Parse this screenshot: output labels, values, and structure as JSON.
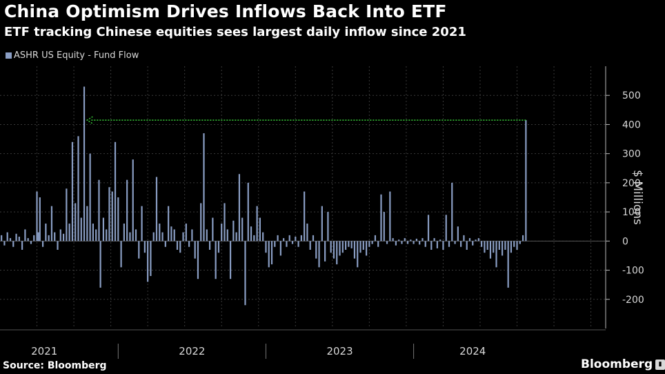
{
  "header": {
    "title": "China Optimism Drives Inflows Back Into ETF",
    "subtitle": "ETF tracking Chinese equities sees largest daily inflow since 2021"
  },
  "legend": {
    "label": "ASHR US Equity - Fund Flow"
  },
  "footer": {
    "source": "Source: Bloomberg",
    "brand": "Bloomberg"
  },
  "colors": {
    "bars": "#8a9ec4",
    "annotation": "#39d339",
    "grid": "#3a3a3a",
    "background": "#000000"
  },
  "chart_data": {
    "type": "bar",
    "title": "China Optimism Drives Inflows Back Into ETF",
    "subtitle": "ETF tracking Chinese equities sees largest daily inflow since 2021",
    "ylabel": "$ Millions",
    "y_axis_side": "right",
    "ylim": [
      -300,
      600
    ],
    "yticks": [
      -200,
      -100,
      0,
      100,
      200,
      300,
      400,
      500
    ],
    "xlim": [
      2020.75,
      2024.85
    ],
    "x_tick_labels": [
      "2021",
      "2022",
      "2023",
      "2024"
    ],
    "x_tick_label_positions": [
      2021.05,
      2022.05,
      2023.05,
      2023.95
    ],
    "x_dividers": [
      2021.55,
      2022.55,
      2023.55
    ],
    "grid": true,
    "legend_placement": "top-left",
    "series": [
      {
        "name": "ASHR US Equity - Fund Flow",
        "points": [
          [
            2020.76,
            20
          ],
          [
            2020.78,
            -15
          ],
          [
            2020.8,
            30
          ],
          [
            2020.82,
            10
          ],
          [
            2020.84,
            -20
          ],
          [
            2020.86,
            25
          ],
          [
            2020.88,
            15
          ],
          [
            2020.9,
            -30
          ],
          [
            2020.92,
            40
          ],
          [
            2020.94,
            10
          ],
          [
            2020.96,
            -10
          ],
          [
            2020.98,
            20
          ],
          [
            2021.0,
            170
          ],
          [
            2021.01,
            30
          ],
          [
            2021.02,
            150
          ],
          [
            2021.04,
            -20
          ],
          [
            2021.06,
            60
          ],
          [
            2021.08,
            20
          ],
          [
            2021.1,
            120
          ],
          [
            2021.12,
            30
          ],
          [
            2021.14,
            -30
          ],
          [
            2021.16,
            40
          ],
          [
            2021.18,
            25
          ],
          [
            2021.2,
            180
          ],
          [
            2021.22,
            60
          ],
          [
            2021.24,
            340
          ],
          [
            2021.26,
            130
          ],
          [
            2021.28,
            360
          ],
          [
            2021.3,
            80
          ],
          [
            2021.32,
            530
          ],
          [
            2021.34,
            120
          ],
          [
            2021.36,
            300
          ],
          [
            2021.38,
            60
          ],
          [
            2021.4,
            40
          ],
          [
            2021.42,
            210
          ],
          [
            2021.43,
            -160
          ],
          [
            2021.45,
            80
          ],
          [
            2021.47,
            40
          ],
          [
            2021.49,
            185
          ],
          [
            2021.51,
            170
          ],
          [
            2021.53,
            340
          ],
          [
            2021.55,
            150
          ],
          [
            2021.57,
            -90
          ],
          [
            2021.59,
            60
          ],
          [
            2021.61,
            210
          ],
          [
            2021.63,
            30
          ],
          [
            2021.65,
            280
          ],
          [
            2021.67,
            40
          ],
          [
            2021.69,
            -60
          ],
          [
            2021.71,
            120
          ],
          [
            2021.73,
            -40
          ],
          [
            2021.75,
            -140
          ],
          [
            2021.77,
            -120
          ],
          [
            2021.79,
            30
          ],
          [
            2021.81,
            220
          ],
          [
            2021.83,
            60
          ],
          [
            2021.85,
            30
          ],
          [
            2021.87,
            -20
          ],
          [
            2021.89,
            120
          ],
          [
            2021.91,
            50
          ],
          [
            2021.93,
            40
          ],
          [
            2021.95,
            -30
          ],
          [
            2021.97,
            -40
          ],
          [
            2021.99,
            30
          ],
          [
            2022.01,
            60
          ],
          [
            2022.03,
            -20
          ],
          [
            2022.05,
            40
          ],
          [
            2022.07,
            -60
          ],
          [
            2022.09,
            -130
          ],
          [
            2022.11,
            130
          ],
          [
            2022.13,
            370
          ],
          [
            2022.15,
            40
          ],
          [
            2022.17,
            -30
          ],
          [
            2022.19,
            80
          ],
          [
            2022.21,
            -130
          ],
          [
            2022.23,
            -40
          ],
          [
            2022.25,
            60
          ],
          [
            2022.27,
            130
          ],
          [
            2022.29,
            40
          ],
          [
            2022.31,
            -130
          ],
          [
            2022.33,
            70
          ],
          [
            2022.35,
            30
          ],
          [
            2022.37,
            230
          ],
          [
            2022.39,
            80
          ],
          [
            2022.41,
            -220
          ],
          [
            2022.43,
            200
          ],
          [
            2022.45,
            50
          ],
          [
            2022.47,
            20
          ],
          [
            2022.49,
            120
          ],
          [
            2022.51,
            80
          ],
          [
            2022.53,
            30
          ],
          [
            2022.55,
            -40
          ],
          [
            2022.57,
            -90
          ],
          [
            2022.59,
            -80
          ],
          [
            2022.61,
            -20
          ],
          [
            2022.63,
            20
          ],
          [
            2022.65,
            -50
          ],
          [
            2022.67,
            10
          ],
          [
            2022.69,
            -20
          ],
          [
            2022.71,
            20
          ],
          [
            2022.73,
            -10
          ],
          [
            2022.75,
            15
          ],
          [
            2022.77,
            -20
          ],
          [
            2022.79,
            20
          ],
          [
            2022.81,
            170
          ],
          [
            2022.83,
            60
          ],
          [
            2022.85,
            -30
          ],
          [
            2022.87,
            20
          ],
          [
            2022.89,
            -60
          ],
          [
            2022.91,
            -90
          ],
          [
            2022.93,
            120
          ],
          [
            2022.95,
            -70
          ],
          [
            2022.97,
            100
          ],
          [
            2022.99,
            -40
          ],
          [
            2023.01,
            -60
          ],
          [
            2023.03,
            -80
          ],
          [
            2023.05,
            -50
          ],
          [
            2023.07,
            -40
          ],
          [
            2023.09,
            -30
          ],
          [
            2023.11,
            -20
          ],
          [
            2023.13,
            -25
          ],
          [
            2023.15,
            -60
          ],
          [
            2023.17,
            -90
          ],
          [
            2023.19,
            -40
          ],
          [
            2023.21,
            -30
          ],
          [
            2023.23,
            -50
          ],
          [
            2023.25,
            -20
          ],
          [
            2023.27,
            -10
          ],
          [
            2023.29,
            20
          ],
          [
            2023.31,
            -20
          ],
          [
            2023.33,
            160
          ],
          [
            2023.35,
            100
          ],
          [
            2023.37,
            -10
          ],
          [
            2023.39,
            170
          ],
          [
            2023.41,
            10
          ],
          [
            2023.43,
            -15
          ],
          [
            2023.45,
            5
          ],
          [
            2023.47,
            -10
          ],
          [
            2023.49,
            10
          ],
          [
            2023.51,
            -10
          ],
          [
            2023.53,
            5
          ],
          [
            2023.55,
            -10
          ],
          [
            2023.57,
            8
          ],
          [
            2023.59,
            -12
          ],
          [
            2023.61,
            10
          ],
          [
            2023.63,
            -20
          ],
          [
            2023.65,
            90
          ],
          [
            2023.67,
            -30
          ],
          [
            2023.69,
            10
          ],
          [
            2023.71,
            -25
          ],
          [
            2023.73,
            5
          ],
          [
            2023.75,
            -30
          ],
          [
            2023.77,
            90
          ],
          [
            2023.79,
            -20
          ],
          [
            2023.81,
            200
          ],
          [
            2023.83,
            -10
          ],
          [
            2023.85,
            50
          ],
          [
            2023.87,
            -20
          ],
          [
            2023.89,
            20
          ],
          [
            2023.91,
            -30
          ],
          [
            2023.93,
            10
          ],
          [
            2023.95,
            -15
          ],
          [
            2023.97,
            5
          ],
          [
            2023.99,
            10
          ],
          [
            2024.01,
            -20
          ],
          [
            2024.03,
            -40
          ],
          [
            2024.05,
            -30
          ],
          [
            2024.07,
            -60
          ],
          [
            2024.09,
            -40
          ],
          [
            2024.11,
            -90
          ],
          [
            2024.13,
            -30
          ],
          [
            2024.15,
            -50
          ],
          [
            2024.17,
            -30
          ],
          [
            2024.19,
            -160
          ],
          [
            2024.21,
            -40
          ],
          [
            2024.23,
            -20
          ],
          [
            2024.25,
            -30
          ],
          [
            2024.27,
            -10
          ],
          [
            2024.29,
            20
          ],
          [
            2024.31,
            415
          ]
        ]
      }
    ],
    "annotations": [
      {
        "type": "arrow",
        "color": "green",
        "style": "dotted",
        "from_x": 2024.31,
        "to_x": 2021.34,
        "y": 415
      }
    ]
  }
}
